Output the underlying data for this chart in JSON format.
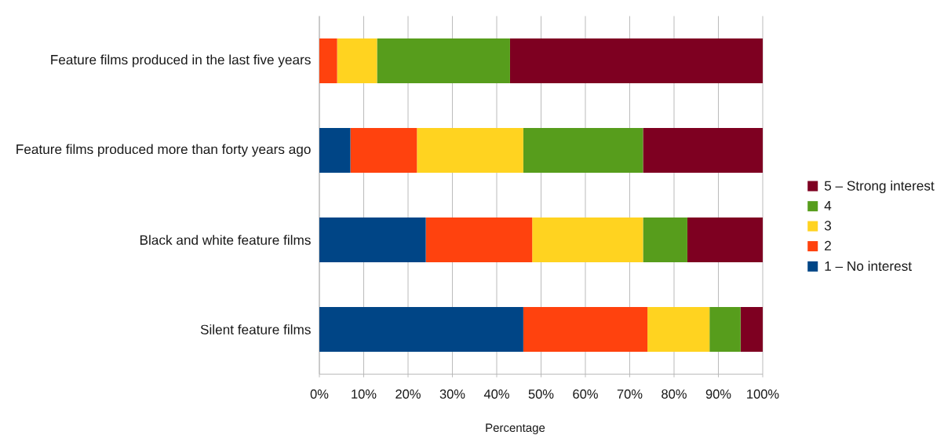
{
  "chart_data": {
    "type": "bar",
    "orientation": "horizontal",
    "stacked": true,
    "xlabel": "Percentage",
    "categories": [
      "Feature films produced in the last five years",
      "Feature films produced more than forty years ago",
      "Black and white feature films",
      "Silent feature films"
    ],
    "series": [
      {
        "name": "1 – No interest",
        "color": "#004586",
        "values": [
          0,
          7,
          24,
          46
        ]
      },
      {
        "name": "2",
        "color": "#ff420e",
        "values": [
          4,
          15,
          24,
          28
        ]
      },
      {
        "name": "3",
        "color": "#ffd320",
        "values": [
          9,
          24,
          25,
          14
        ]
      },
      {
        "name": "4",
        "color": "#579d1c",
        "values": [
          30,
          27,
          10,
          7
        ]
      },
      {
        "name": "5 – Strong interest",
        "color": "#7e0021",
        "values": [
          57,
          27,
          17,
          5
        ]
      }
    ],
    "xlim": [
      0,
      100
    ],
    "xticks": [
      {
        "value": 0,
        "label": "0%"
      },
      {
        "value": 10,
        "label": "10%"
      },
      {
        "value": 20,
        "label": "20%"
      },
      {
        "value": 30,
        "label": "30%"
      },
      {
        "value": 40,
        "label": "40%"
      },
      {
        "value": 50,
        "label": "50%"
      },
      {
        "value": 60,
        "label": "60%"
      },
      {
        "value": 70,
        "label": "70%"
      },
      {
        "value": 80,
        "label": "80%"
      },
      {
        "value": 90,
        "label": "90%"
      },
      {
        "value": 100,
        "label": "100%"
      }
    ],
    "grid": "x",
    "legend": "right"
  }
}
